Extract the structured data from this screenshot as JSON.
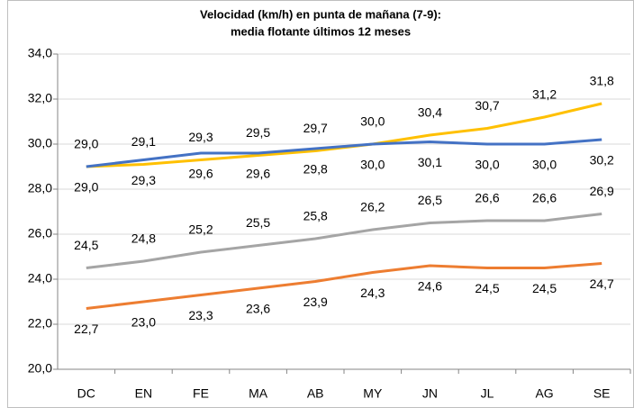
{
  "chart_data": {
    "type": "line",
    "title": "Velocidad (km/h) en punta de mañana (7-9):",
    "subtitle": "media flotante últimos 12 meses",
    "categories": [
      "DC",
      "EN",
      "FE",
      "MA",
      "AB",
      "MY",
      "JN",
      "JL",
      "AG",
      "SE"
    ],
    "series": [
      {
        "color": "#ffc000",
        "label_position": "above",
        "values": [
          29.0,
          29.1,
          29.3,
          29.5,
          29.7,
          30.0,
          30.4,
          30.7,
          31.2,
          31.8
        ],
        "value_labels": [
          "29,0",
          "29,1",
          "29,3",
          "29,5",
          "29,7",
          "30,0",
          "30,4",
          "30,7",
          "31,2",
          "31,8"
        ]
      },
      {
        "color": "#4472c4",
        "label_position": "below",
        "values": [
          29.0,
          29.3,
          29.6,
          29.6,
          29.8,
          30.0,
          30.1,
          30.0,
          30.0,
          30.2
        ],
        "value_labels": [
          "29,0",
          "29,3",
          "29,6",
          "29,6",
          "29,8",
          "30,0",
          "30,1",
          "30,0",
          "30,0",
          "30,2"
        ]
      },
      {
        "color": "#a5a5a5",
        "label_position": "above",
        "values": [
          24.5,
          24.8,
          25.2,
          25.5,
          25.8,
          26.2,
          26.5,
          26.6,
          26.6,
          26.9
        ],
        "value_labels": [
          "24,5",
          "24,8",
          "25,2",
          "25,5",
          "25,8",
          "26,2",
          "26,5",
          "26,6",
          "26,6",
          "26,9"
        ]
      },
      {
        "color": "#ed7d31",
        "label_position": "below",
        "values": [
          22.7,
          23.0,
          23.3,
          23.6,
          23.9,
          24.3,
          24.6,
          24.5,
          24.5,
          24.7
        ],
        "value_labels": [
          "22,7",
          "23,0",
          "23,3",
          "23,6",
          "23,9",
          "24,3",
          "24,6",
          "24,5",
          "24,5",
          "24,7"
        ]
      }
    ],
    "ylim": [
      20,
      34
    ],
    "yticks": [
      {
        "value": 20,
        "label": "20,0"
      },
      {
        "value": 22,
        "label": "22,0"
      },
      {
        "value": 24,
        "label": "24,0"
      },
      {
        "value": 26,
        "label": "26,0"
      },
      {
        "value": 28,
        "label": "28,0"
      },
      {
        "value": 30,
        "label": "30,0"
      },
      {
        "value": 32,
        "label": "32,0"
      },
      {
        "value": 34,
        "label": "34,0"
      }
    ],
    "grid": true
  }
}
